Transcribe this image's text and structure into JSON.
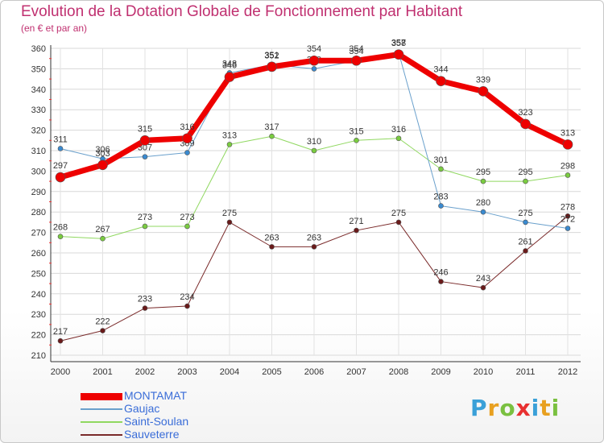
{
  "title": "Evolution de la Dotation Globale de Fonctionnement par Habitant",
  "subtitle": "(en € et par an)",
  "logo": {
    "letters": [
      "P",
      "r",
      "o",
      "x",
      "i",
      "t",
      "i"
    ],
    "colors": [
      "#3aa0d8",
      "#e8a020",
      "#7ac040",
      "#e83030",
      "#3aa0d8",
      "#e8a020",
      "#7ac040"
    ]
  },
  "chart_data": {
    "type": "line",
    "title": "Evolution de la Dotation Globale de Fonctionnement par Habitant",
    "xlabel": "",
    "ylabel": "(en € et par an)",
    "ylim": [
      210,
      360
    ],
    "yticks": [
      210,
      220,
      230,
      240,
      250,
      260,
      270,
      280,
      290,
      300,
      310,
      320,
      330,
      340,
      350,
      360
    ],
    "x": [
      "2000",
      "2001",
      "2002",
      "2003",
      "2004",
      "2005",
      "2006",
      "2007",
      "2008",
      "2009",
      "2010",
      "2011",
      "2012"
    ],
    "grid": true,
    "legend_position": "bottom-left",
    "series": [
      {
        "name": "Sauveterre",
        "color": "#7a2a2a",
        "dot": "#6a1a1a",
        "width": 1,
        "radius": 3,
        "values": [
          217,
          222,
          233,
          234,
          275,
          263,
          263,
          271,
          275,
          246,
          243,
          261,
          278
        ]
      },
      {
        "name": "Saint-Soulan",
        "color": "#90d860",
        "dot": "#7acc40",
        "width": 1,
        "radius": 3,
        "values": [
          268,
          267,
          273,
          273,
          313,
          317,
          310,
          315,
          316,
          301,
          295,
          295,
          298
        ]
      },
      {
        "name": "Gaujac",
        "color": "#6aa0cc",
        "dot": "#3a8ad0",
        "width": 1,
        "radius": 3,
        "values": [
          311,
          306,
          307,
          309,
          348,
          352,
          350,
          354,
          358,
          283,
          280,
          275,
          272
        ]
      },
      {
        "name": "MONTAMAT",
        "color": "#ee0000",
        "dot": "#ee0000",
        "width": 7,
        "radius": 6,
        "values": [
          297,
          303,
          315,
          316,
          346,
          351,
          354,
          354,
          357,
          344,
          339,
          323,
          313
        ]
      }
    ]
  },
  "legend_order": [
    "MONTAMAT",
    "Gaujac",
    "Saint-Soulan",
    "Sauveterre"
  ]
}
